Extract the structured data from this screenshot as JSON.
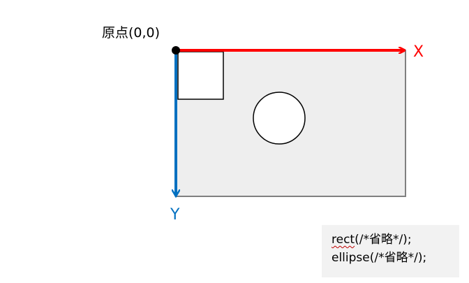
{
  "origin_label": "原点(0,0)",
  "x_axis_label": "X",
  "y_axis_label": "Y",
  "code": {
    "line1_keyword": "rect",
    "line1_rest": "(/*省略*/);",
    "line2": "ellipse(/*省略*/);"
  },
  "colors": {
    "x_axis": "#ff0000",
    "y_axis": "#0070c0",
    "canvas_fill": "#eeeeee",
    "canvas_border": "#808080",
    "shape_border": "#000000",
    "code_background": "#f2f2f2"
  }
}
